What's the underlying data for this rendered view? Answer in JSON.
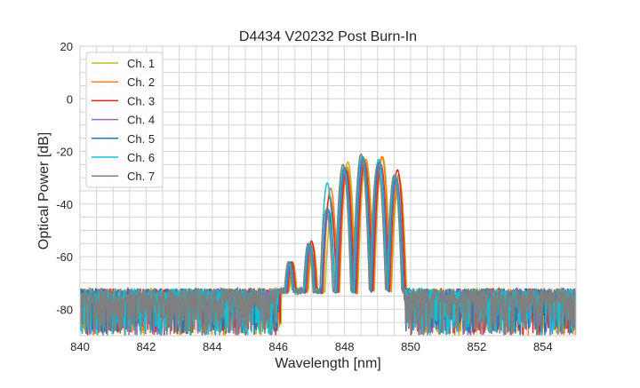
{
  "chart_data": {
    "type": "line",
    "title": "D4434 V20232 Post Burn-In",
    "xlabel": "Wavelength [nm]",
    "ylabel": "Optical Power [dB]",
    "xlim": [
      840,
      855
    ],
    "ylim": [
      -90,
      20
    ],
    "xticks": [
      840,
      842,
      844,
      846,
      848,
      850,
      852,
      854
    ],
    "yticks": [
      20,
      0,
      -20,
      -40,
      -60,
      -80
    ],
    "grid": true,
    "legend_position": "top-left",
    "noise_floor_db": [
      -90,
      -72
    ],
    "series": [
      {
        "name": "Ch. 1",
        "color": "#bcbd22",
        "shift_nm": 0.1,
        "lobe_peaks_db": [
          -63,
          -56,
          -44,
          -24,
          -23,
          -22,
          -30
        ]
      },
      {
        "name": "Ch. 2",
        "color": "#ff7f0e",
        "shift_nm": 0.08,
        "lobe_peaks_db": [
          -62,
          -55,
          -34,
          -26,
          -23,
          -22,
          -29
        ]
      },
      {
        "name": "Ch. 3",
        "color": "#d62728",
        "shift_nm": 0.05,
        "lobe_peaks_db": [
          -62,
          -54,
          -37,
          -27,
          -24,
          -25,
          -27
        ]
      },
      {
        "name": "Ch. 4",
        "color": "#9467bd",
        "shift_nm": 0.02,
        "lobe_peaks_db": [
          -63,
          -56,
          -43,
          -27,
          -23,
          -24,
          -30
        ]
      },
      {
        "name": "Ch. 5",
        "color": "#1f77b4",
        "shift_nm": 0.0,
        "lobe_peaks_db": [
          -62,
          -55,
          -42,
          -26,
          -22,
          -24,
          -30
        ]
      },
      {
        "name": "Ch. 6",
        "color": "#17becf",
        "shift_nm": -0.02,
        "lobe_peaks_db": [
          -62,
          -55,
          -32,
          -26,
          -22,
          -23,
          -29
        ]
      },
      {
        "name": "Ch. 7",
        "color": "#7f7f7f",
        "shift_nm": -0.05,
        "lobe_peaks_db": [
          -62,
          -55,
          -42,
          -25,
          -21,
          -25,
          -29
        ]
      }
    ],
    "lobe_centers_nm": [
      846.35,
      846.95,
      847.5,
      848.0,
      848.55,
      849.05,
      849.55
    ]
  }
}
